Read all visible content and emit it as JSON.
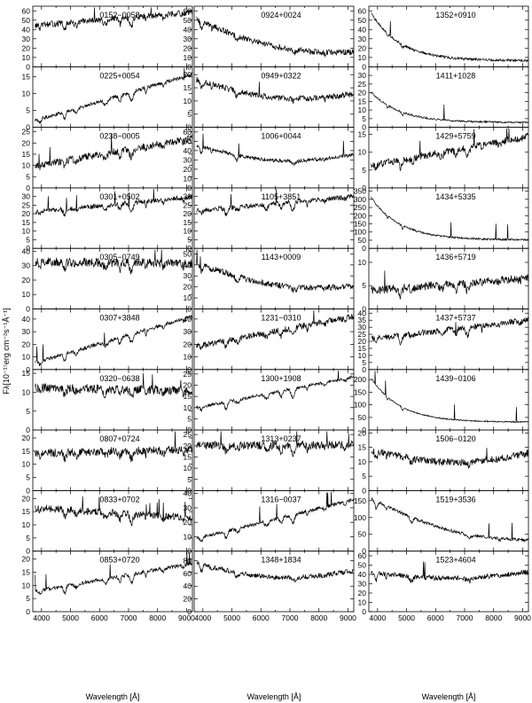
{
  "figure": {
    "ylabel": "Fλ[10⁻¹⁷erg cm⁻²s⁻¹Å⁻¹]",
    "xlabel": "Wavelength [Å]"
  },
  "chart_data": {
    "type": "line",
    "layout": "grid of spectra, 10 rows x 3 columns",
    "x_axis": {
      "label": "Wavelength [Å]",
      "range": [
        3700,
        9200
      ],
      "ticks": [
        4000,
        5000,
        6000,
        7000,
        8000,
        9000
      ]
    },
    "panels": [
      {
        "name": "0152−0058",
        "ylim": [
          0,
          65
        ],
        "yticks": [
          0,
          10,
          20,
          30,
          40,
          50,
          60
        ],
        "shape": "M",
        "start": 0.68,
        "end": 0.9,
        "noise": 0.1
      },
      {
        "name": "0225+0054",
        "ylim": [
          0,
          18
        ],
        "yticks": [
          0,
          5,
          10,
          15
        ],
        "shape": "M",
        "start": 0.1,
        "end": 0.88,
        "noise": 0.06
      },
      {
        "name": "0238−0005",
        "ylim": [
          0,
          27
        ],
        "yticks": [
          0,
          5,
          10,
          15,
          20,
          25
        ],
        "shape": "M",
        "start": 0.36,
        "end": 0.82,
        "noise": 0.12
      },
      {
        "name": "0301+0502",
        "ylim": [
          0,
          35
        ],
        "yticks": [
          0,
          5,
          10,
          15,
          20,
          25,
          30
        ],
        "shape": "M",
        "start": 0.6,
        "end": 0.85,
        "noise": 0.08
      },
      {
        "name": "0305−0749",
        "ylim": [
          0,
          42
        ],
        "yticks": [
          0,
          10,
          20,
          30,
          40
        ],
        "shape": "M",
        "start": 0.78,
        "end": 0.75,
        "noise": 0.15
      },
      {
        "name": "0307+3848",
        "ylim": [
          0,
          48
        ],
        "yticks": [
          0,
          10,
          20,
          30,
          40
        ],
        "shape": "M",
        "start": 0.1,
        "end": 0.88,
        "noise": 0.06
      },
      {
        "name": "0320−0638",
        "ylim": [
          0,
          16
        ],
        "yticks": [
          0,
          5,
          10,
          15
        ],
        "shape": "M",
        "start": 0.7,
        "end": 0.65,
        "noise": 0.15
      },
      {
        "name": "0807+0724",
        "ylim": [
          0,
          23
        ],
        "yticks": [
          0,
          5,
          10,
          15,
          20
        ],
        "shape": "M",
        "start": 0.62,
        "end": 0.68,
        "noise": 0.14
      },
      {
        "name": "0833+0702",
        "ylim": [
          0,
          23
        ],
        "yticks": [
          0,
          5,
          10,
          15,
          20
        ],
        "shape": "M",
        "start": 0.72,
        "end": 0.55,
        "noise": 0.12
      },
      {
        "name": "0853+0720",
        "ylim": [
          0,
          23
        ],
        "yticks": [
          0,
          5,
          10,
          15,
          20
        ],
        "shape": "M",
        "start": 0.33,
        "end": 0.8,
        "noise": 0.06
      },
      {
        "name": "0924+0024",
        "ylim": [
          0,
          65
        ],
        "yticks": [
          0,
          10,
          20,
          30,
          40,
          50,
          60
        ],
        "shape": "K",
        "start": 0.8,
        "end": 0.24,
        "noise": 0.1
      },
      {
        "name": "0949+0322",
        "ylim": [
          0,
          23
        ],
        "yticks": [
          0,
          5,
          10,
          15,
          20
        ],
        "shape": "K",
        "start": 0.8,
        "end": 0.55,
        "noise": 0.1
      },
      {
        "name": "1006+0044",
        "ylim": [
          0,
          65
        ],
        "yticks": [
          0,
          10,
          20,
          30,
          40,
          50,
          60
        ],
        "shape": "K",
        "start": 0.72,
        "end": 0.55,
        "noise": 0.06
      },
      {
        "name": "1105+3851",
        "ylim": [
          0,
          35
        ],
        "yticks": [
          0,
          5,
          10,
          15,
          20,
          25,
          30
        ],
        "shape": "M",
        "start": 0.62,
        "end": 0.86,
        "noise": 0.08
      },
      {
        "name": "1143+0009",
        "ylim": [
          0,
          55
        ],
        "yticks": [
          0,
          10,
          20,
          30,
          40,
          50
        ],
        "shape": "K",
        "start": 0.78,
        "end": 0.38,
        "noise": 0.1
      },
      {
        "name": "1231−0310",
        "ylim": [
          0,
          48
        ],
        "yticks": [
          0,
          10,
          20,
          30,
          40
        ],
        "shape": "M",
        "start": 0.38,
        "end": 0.88,
        "noise": 0.1
      },
      {
        "name": "1300+1908",
        "ylim": [
          0,
          27
        ],
        "yticks": [
          0,
          5,
          10,
          15,
          20,
          25
        ],
        "shape": "M",
        "start": 0.36,
        "end": 0.88,
        "noise": 0.05
      },
      {
        "name": "1313+0237",
        "ylim": [
          0,
          27
        ],
        "yticks": [
          0,
          5,
          10,
          15,
          20,
          25
        ],
        "shape": "M",
        "start": 0.75,
        "end": 0.75,
        "noise": 0.14
      },
      {
        "name": "1316−0037",
        "ylim": [
          0,
          42
        ],
        "yticks": [
          0,
          10,
          20,
          30,
          40
        ],
        "shape": "M",
        "start": 0.2,
        "end": 0.85,
        "noise": 0.06
      },
      {
        "name": "1348+1834",
        "ylim": [
          0,
          95
        ],
        "yticks": [
          0,
          20,
          40,
          60,
          80
        ],
        "shape": "K",
        "start": 0.82,
        "end": 0.68,
        "noise": 0.08
      },
      {
        "name": "1352+0910",
        "ylim": [
          0,
          65
        ],
        "yticks": [
          0,
          10,
          20,
          30,
          40,
          50,
          60
        ],
        "shape": "hot",
        "start": 0.95,
        "end": 0.1,
        "noise": 0.04
      },
      {
        "name": "1411+1028",
        "ylim": [
          0,
          35
        ],
        "yticks": [
          0,
          5,
          10,
          15,
          20,
          25,
          30
        ],
        "shape": "hot",
        "start": 0.62,
        "end": 0.08,
        "noise": 0.03
      },
      {
        "name": "1429+5759",
        "ylim": [
          0,
          17
        ],
        "yticks": [
          0,
          5,
          10,
          15
        ],
        "shape": "M",
        "start": 0.36,
        "end": 0.85,
        "noise": 0.12
      },
      {
        "name": "1434+5335",
        "ylim": [
          0,
          370
        ],
        "yticks": [
          0,
          50,
          100,
          150,
          200,
          250,
          300,
          350
        ],
        "shape": "hot",
        "start": 0.9,
        "end": 0.14,
        "noise": 0.03
      },
      {
        "name": "1436+5719",
        "ylim": [
          0,
          13
        ],
        "yticks": [
          0,
          5,
          10
        ],
        "shape": "M",
        "start": 0.3,
        "end": 0.52,
        "noise": 0.14
      },
      {
        "name": "1437+5737",
        "ylim": [
          0,
          43
        ],
        "yticks": [
          0,
          5,
          10,
          15,
          20,
          25,
          30,
          35,
          40
        ],
        "shape": "M",
        "start": 0.5,
        "end": 0.82,
        "noise": 0.1
      },
      {
        "name": "1439−0106",
        "ylim": [
          0,
          240
        ],
        "yticks": [
          0,
          50,
          100,
          150,
          200
        ],
        "shape": "hot",
        "start": 0.92,
        "end": 0.13,
        "noise": 0.02
      },
      {
        "name": "1506−0120",
        "ylim": [
          0,
          21
        ],
        "yticks": [
          0,
          5,
          10,
          15,
          20
        ],
        "shape": "K",
        "start": 0.68,
        "end": 0.62,
        "noise": 0.12
      },
      {
        "name": "1519+3536",
        "ylim": [
          0,
          180
        ],
        "yticks": [
          0,
          50,
          100,
          150
        ],
        "shape": "K",
        "start": 0.88,
        "end": 0.18,
        "noise": 0.05
      },
      {
        "name": "1523+4604",
        "ylim": [
          0,
          65
        ],
        "yticks": [
          0,
          10,
          20,
          30,
          40,
          50,
          60
        ],
        "shape": "K",
        "start": 0.66,
        "end": 0.66,
        "noise": 0.08
      }
    ]
  }
}
